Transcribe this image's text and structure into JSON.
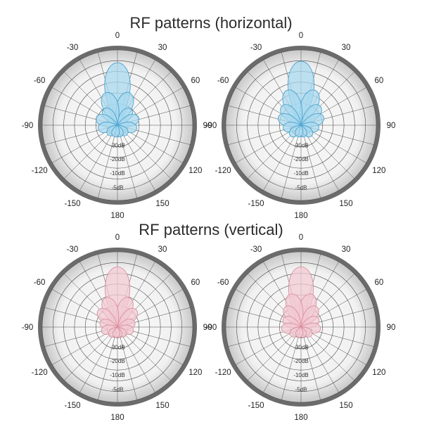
{
  "sections": [
    {
      "title": "RF patterns (horizontal)"
    },
    {
      "title": "RF patterns (vertical)"
    }
  ],
  "angle_labels": [
    "0",
    "30",
    "60",
    "90",
    "120",
    "150",
    "180",
    "-150",
    "-120",
    "-90",
    "-60",
    "-30"
  ],
  "db_labels": [
    "-30dB",
    "-20dB",
    "-10dB",
    "-5dB"
  ],
  "colors": {
    "horizontal_fill": "#a8d8ee",
    "horizontal_stroke": "#4aa3cf",
    "vertical_fill": "#f3c9d2",
    "vertical_stroke": "#d9909d",
    "plot_bg": "#f1f1f1",
    "rim": "#6b6b6b",
    "grid": "#4d4d4d"
  },
  "chart_data": [
    {
      "type": "polar",
      "section": "RF patterns (horizontal)",
      "lobes": [
        {
          "angle": 0,
          "magnitude": 0.83
        },
        {
          "angle": 20,
          "magnitude": 0.46
        },
        {
          "angle": -20,
          "magnitude": 0.46
        },
        {
          "angle": 40,
          "magnitude": 0.28
        },
        {
          "angle": -40,
          "magnitude": 0.28
        },
        {
          "angle": 70,
          "magnitude": 0.3
        },
        {
          "angle": -70,
          "magnitude": 0.3
        },
        {
          "angle": 100,
          "magnitude": 0.26
        },
        {
          "angle": -100,
          "magnitude": 0.26
        },
        {
          "angle": 135,
          "magnitude": 0.18
        },
        {
          "angle": -135,
          "magnitude": 0.18
        },
        {
          "angle": 165,
          "magnitude": 0.16
        },
        {
          "angle": -165,
          "magnitude": 0.16
        }
      ]
    },
    {
      "type": "polar",
      "section": "RF patterns (horizontal)",
      "lobes": [
        {
          "angle": 0,
          "magnitude": 0.85
        },
        {
          "angle": 22,
          "magnitude": 0.5
        },
        {
          "angle": -22,
          "magnitude": 0.5
        },
        {
          "angle": 45,
          "magnitude": 0.36
        },
        {
          "angle": -45,
          "magnitude": 0.36
        },
        {
          "angle": 70,
          "magnitude": 0.32
        },
        {
          "angle": -70,
          "magnitude": 0.32
        },
        {
          "angle": 100,
          "magnitude": 0.24
        },
        {
          "angle": -100,
          "magnitude": 0.24
        },
        {
          "angle": 135,
          "magnitude": 0.2
        },
        {
          "angle": -135,
          "magnitude": 0.2
        },
        {
          "angle": 165,
          "magnitude": 0.16
        },
        {
          "angle": -165,
          "magnitude": 0.16
        }
      ]
    },
    {
      "type": "polar",
      "section": "RF patterns (vertical)",
      "lobes": [
        {
          "angle": 0,
          "magnitude": 0.8
        },
        {
          "angle": 22,
          "magnitude": 0.42
        },
        {
          "angle": -22,
          "magnitude": 0.42
        },
        {
          "angle": 48,
          "magnitude": 0.34
        },
        {
          "angle": -48,
          "magnitude": 0.34
        },
        {
          "angle": 75,
          "magnitude": 0.24
        },
        {
          "angle": -75,
          "magnitude": 0.24
        },
        {
          "angle": 105,
          "magnitude": 0.22
        },
        {
          "angle": -105,
          "magnitude": 0.22
        },
        {
          "angle": 140,
          "magnitude": 0.16
        },
        {
          "angle": -140,
          "magnitude": 0.16
        },
        {
          "angle": 170,
          "magnitude": 0.14
        },
        {
          "angle": -170,
          "magnitude": 0.14
        }
      ]
    },
    {
      "type": "polar",
      "section": "RF patterns (vertical)",
      "lobes": [
        {
          "angle": 0,
          "magnitude": 0.8
        },
        {
          "angle": 18,
          "magnitude": 0.46
        },
        {
          "angle": -18,
          "magnitude": 0.46
        },
        {
          "angle": 38,
          "magnitude": 0.34
        },
        {
          "angle": -38,
          "magnitude": 0.34
        },
        {
          "angle": 65,
          "magnitude": 0.26
        },
        {
          "angle": -65,
          "magnitude": 0.26
        },
        {
          "angle": 95,
          "magnitude": 0.26
        },
        {
          "angle": -95,
          "magnitude": 0.26
        },
        {
          "angle": 130,
          "magnitude": 0.18
        },
        {
          "angle": -130,
          "magnitude": 0.18
        },
        {
          "angle": 165,
          "magnitude": 0.14
        },
        {
          "angle": -165,
          "magnitude": 0.14
        }
      ]
    }
  ]
}
